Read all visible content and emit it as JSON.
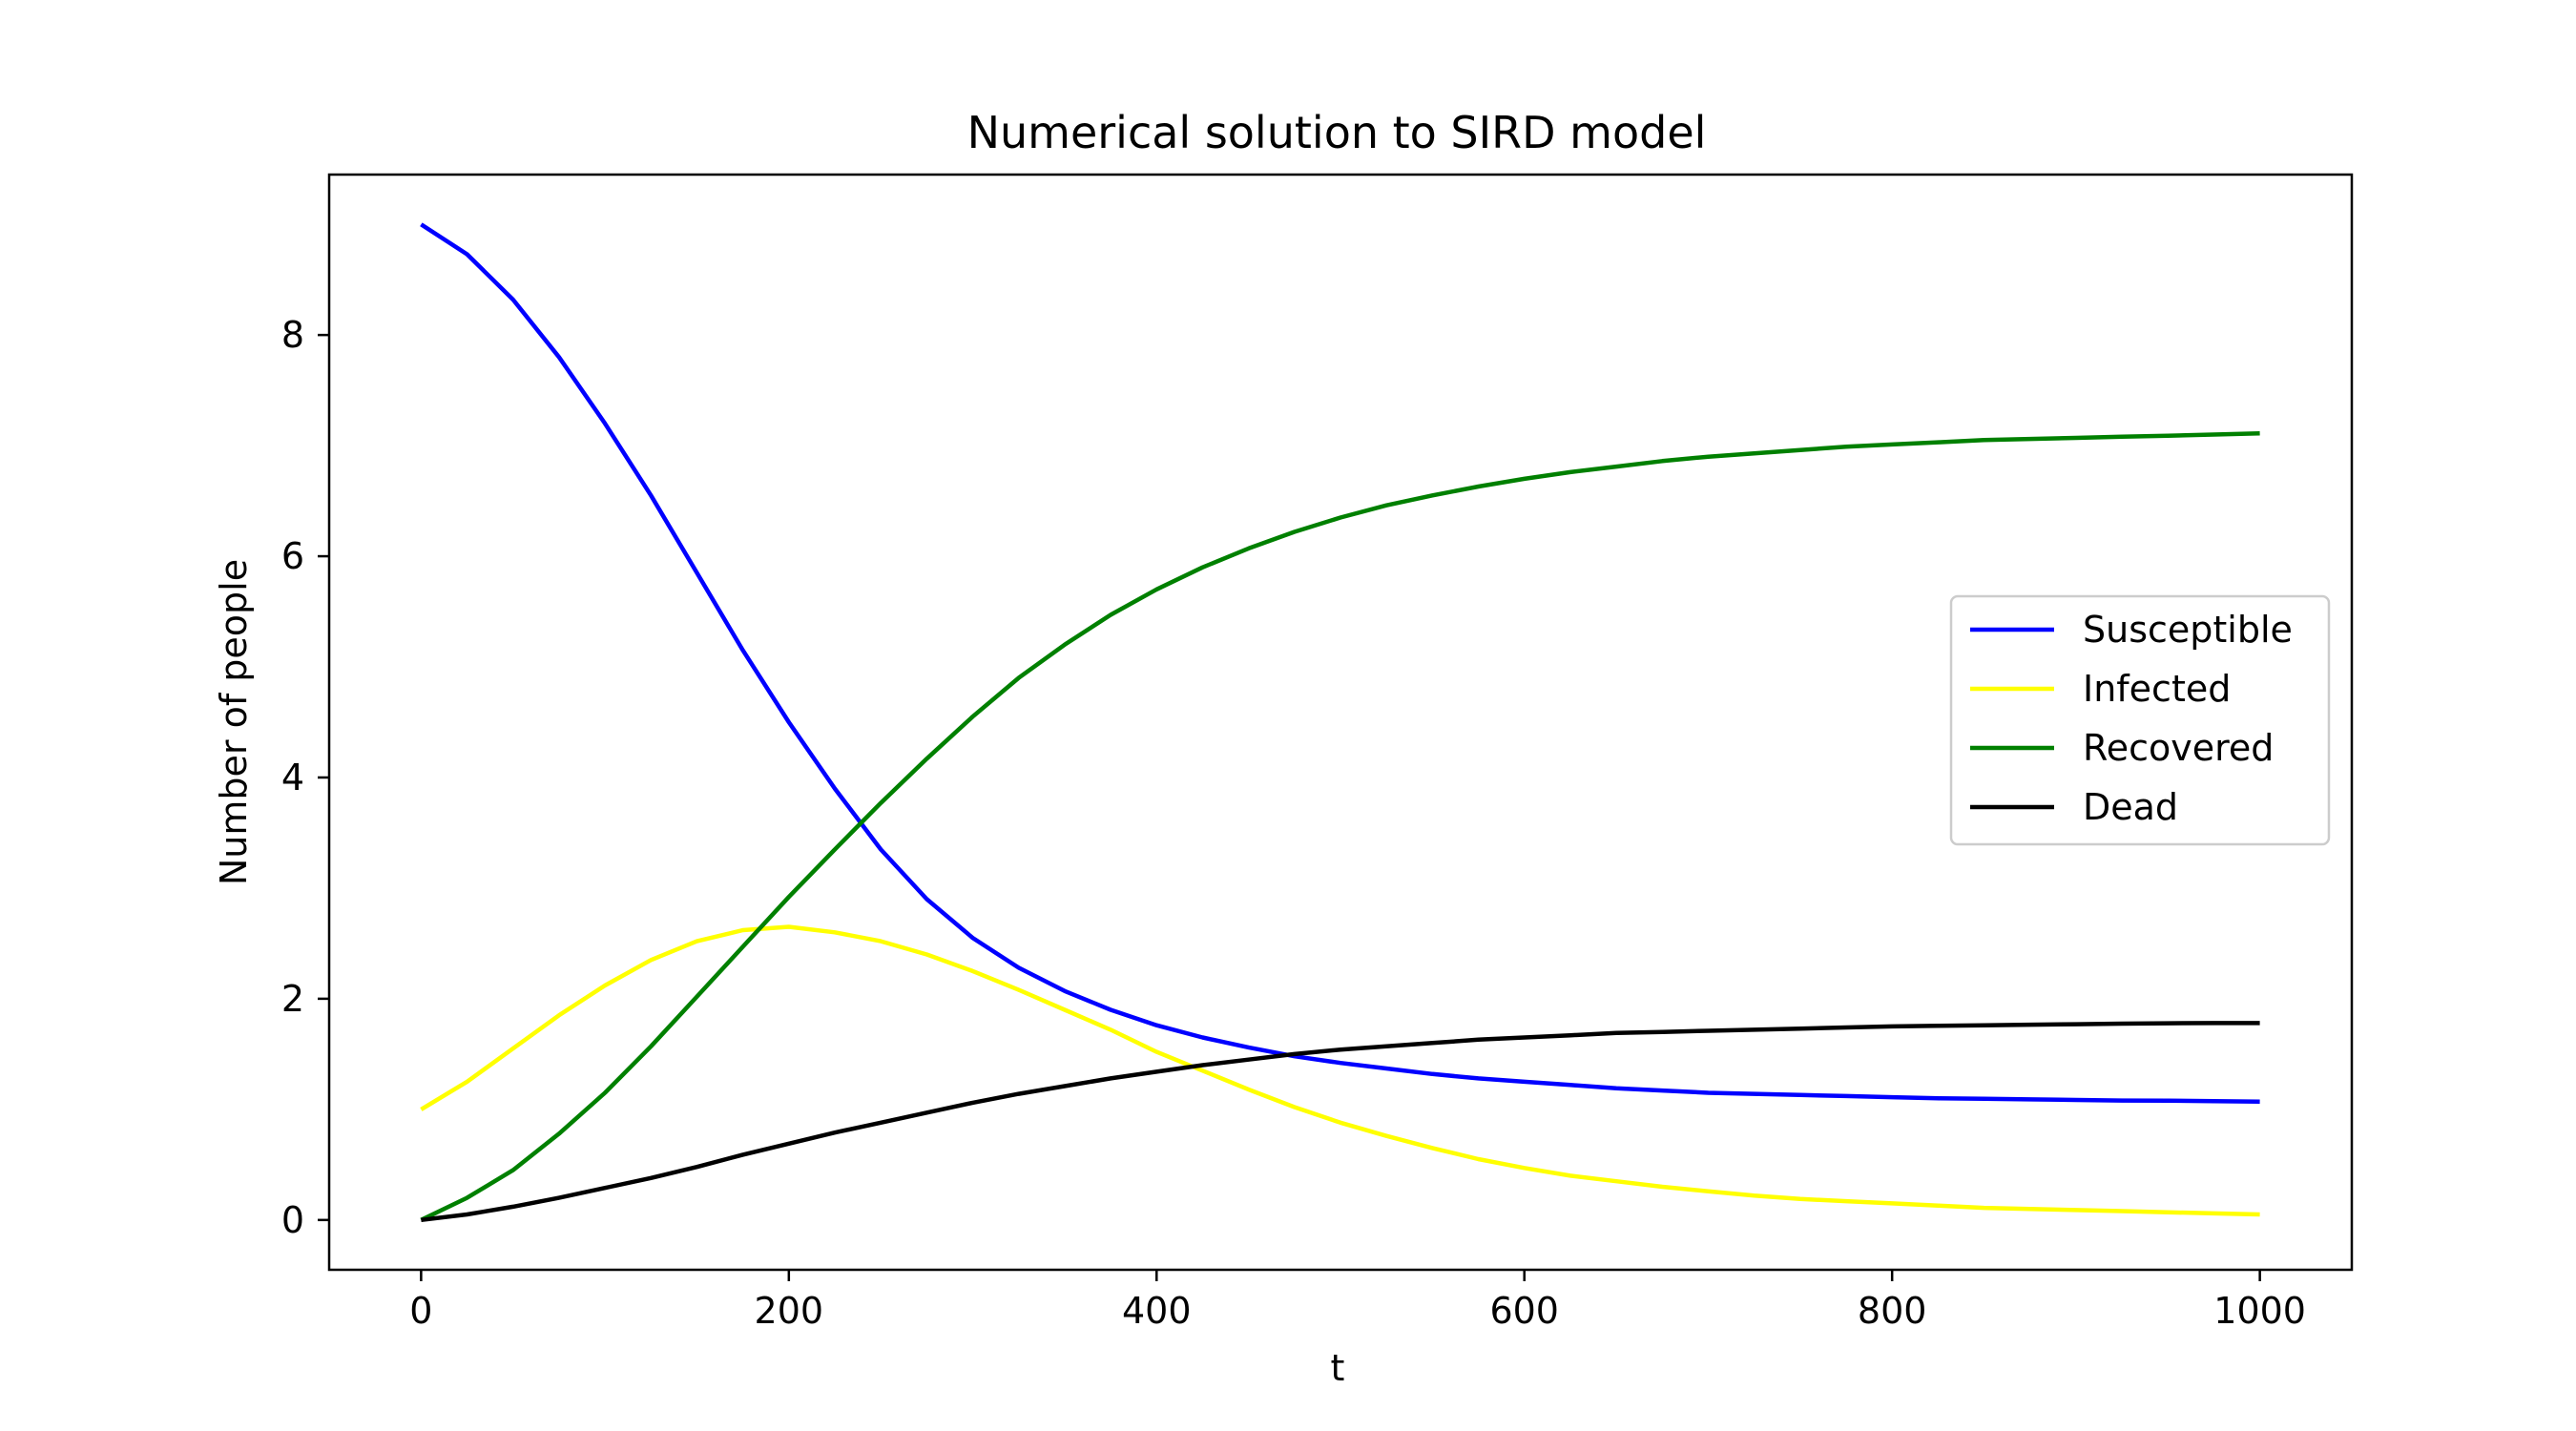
{
  "chart_data": {
    "type": "line",
    "title": "Numerical solution to SIRD model",
    "xlabel": "t",
    "ylabel": "Number of people",
    "xlim": [
      -50,
      1050
    ],
    "ylim": [
      -0.45,
      9.45
    ],
    "xticks": [
      0,
      200,
      400,
      600,
      800,
      1000
    ],
    "yticks": [
      0,
      2,
      4,
      6,
      8
    ],
    "grid": false,
    "legend": "center-right",
    "x": [
      0,
      25,
      50,
      75,
      100,
      125,
      150,
      175,
      200,
      225,
      250,
      275,
      300,
      325,
      350,
      375,
      400,
      425,
      450,
      475,
      500,
      525,
      550,
      575,
      600,
      625,
      650,
      675,
      700,
      725,
      750,
      775,
      800,
      825,
      850,
      875,
      900,
      925,
      950,
      975,
      1000
    ],
    "series": [
      {
        "name": "Susceptible",
        "color": "#0000ff",
        "values": [
          9.0,
          8.73,
          8.32,
          7.8,
          7.2,
          6.55,
          5.85,
          5.15,
          4.5,
          3.9,
          3.35,
          2.9,
          2.55,
          2.28,
          2.07,
          1.9,
          1.76,
          1.65,
          1.56,
          1.48,
          1.42,
          1.37,
          1.32,
          1.28,
          1.25,
          1.22,
          1.19,
          1.17,
          1.15,
          1.14,
          1.13,
          1.12,
          1.11,
          1.1,
          1.095,
          1.09,
          1.085,
          1.08,
          1.078,
          1.075,
          1.07
        ]
      },
      {
        "name": "Infected",
        "color": "#ffff00",
        "values": [
          1.0,
          1.25,
          1.55,
          1.85,
          2.12,
          2.35,
          2.52,
          2.62,
          2.65,
          2.6,
          2.52,
          2.4,
          2.25,
          2.08,
          1.9,
          1.72,
          1.52,
          1.35,
          1.18,
          1.02,
          0.88,
          0.76,
          0.65,
          0.55,
          0.47,
          0.4,
          0.35,
          0.3,
          0.26,
          0.22,
          0.19,
          0.17,
          0.15,
          0.13,
          0.11,
          0.1,
          0.09,
          0.08,
          0.07,
          0.06,
          0.05
        ]
      },
      {
        "name": "Recovered",
        "color": "#008000",
        "values": [
          0.0,
          0.2,
          0.45,
          0.78,
          1.15,
          1.57,
          2.02,
          2.47,
          2.92,
          3.35,
          3.77,
          4.17,
          4.55,
          4.9,
          5.2,
          5.47,
          5.7,
          5.9,
          6.07,
          6.22,
          6.35,
          6.46,
          6.55,
          6.63,
          6.7,
          6.76,
          6.81,
          6.86,
          6.9,
          6.93,
          6.96,
          6.99,
          7.01,
          7.03,
          7.05,
          7.06,
          7.07,
          7.08,
          7.09,
          7.1,
          7.11
        ]
      },
      {
        "name": "Dead",
        "color": "#000000",
        "values": [
          0.0,
          0.05,
          0.12,
          0.2,
          0.29,
          0.38,
          0.48,
          0.59,
          0.69,
          0.79,
          0.88,
          0.97,
          1.06,
          1.14,
          1.21,
          1.28,
          1.34,
          1.4,
          1.45,
          1.5,
          1.54,
          1.57,
          1.6,
          1.63,
          1.65,
          1.67,
          1.69,
          1.7,
          1.71,
          1.72,
          1.73,
          1.74,
          1.75,
          1.755,
          1.76,
          1.765,
          1.77,
          1.775,
          1.778,
          1.78,
          1.78
        ]
      }
    ]
  }
}
